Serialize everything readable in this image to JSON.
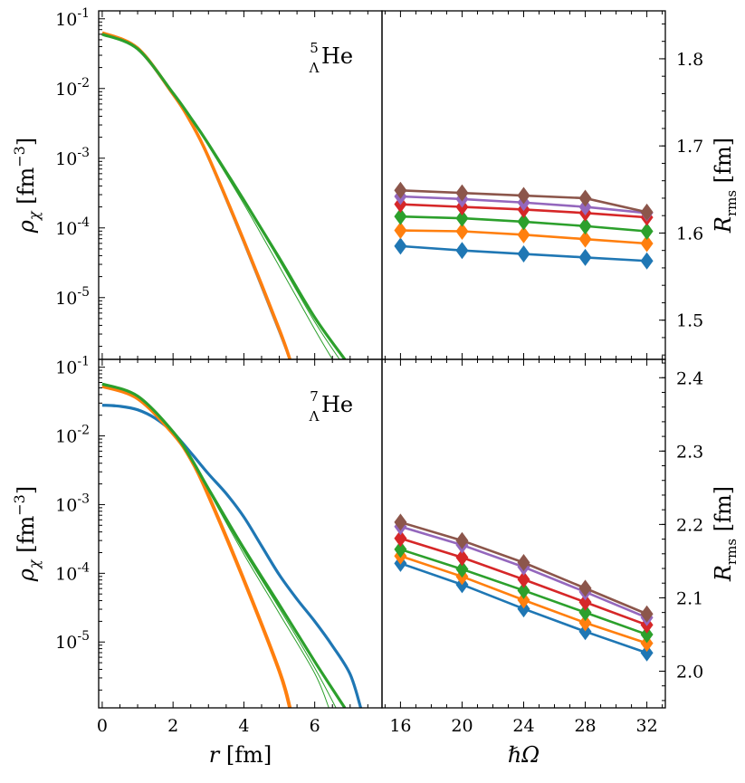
{
  "colors": {
    "blue": "#1f77b4",
    "orange": "#ff7f0e",
    "green": "#2ca02c",
    "red": "#d62728",
    "purple": "#9467bd",
    "brown": "#8c564b",
    "gray": "#7f7f7f"
  },
  "chart_data": [
    {
      "id": "top-left",
      "type": "line",
      "label_super": "5",
      "label_sub": "Λ",
      "label_element": "He",
      "ylabel": "ρ_χ [fm^-3]",
      "yscale": "log",
      "xlim": [
        -0.1,
        7.9
      ],
      "ylim": [
        1.3e-06,
        0.13
      ],
      "ytick_exponents": [
        "-1",
        "-2",
        "-3",
        "-4",
        "-5"
      ],
      "ytick_values": [
        0.1,
        0.01,
        0.001,
        0.0001,
        1e-05
      ],
      "series": [
        {
          "name": "gray",
          "color": "gray",
          "width": 3,
          "x": [
            0,
            1,
            2,
            2.5,
            3,
            4,
            5,
            5.3
          ],
          "y": [
            0.061,
            0.037,
            0.0082,
            0.0033,
            0.00102,
            6.25e-05,
            3.3e-06,
            1.3e-06
          ]
        },
        {
          "name": "orange",
          "color": "orange",
          "width": 3.5,
          "x": [
            0,
            1,
            2,
            2.5,
            3,
            4,
            5,
            5.3
          ],
          "y": [
            0.063,
            0.038,
            0.0083,
            0.0033,
            0.00104,
            6.55e-05,
            3.5e-06,
            1.3e-06
          ]
        },
        {
          "name": "green-thin-1",
          "color": "green",
          "width": 1,
          "x": [
            0,
            1,
            2,
            2.5,
            3,
            4,
            5,
            6,
            6.5
          ],
          "y": [
            0.06,
            0.037,
            0.0086,
            0.0038,
            0.0015,
            0.00022,
            2.8e-05,
            3.5e-06,
            1.3e-06
          ]
        },
        {
          "name": "green-thin-2",
          "color": "green",
          "width": 1,
          "x": [
            0,
            1,
            2,
            2.5,
            3,
            4,
            5,
            6,
            6.7
          ],
          "y": [
            0.06,
            0.037,
            0.0086,
            0.0038,
            0.00155,
            0.00024,
            3.4e-05,
            4.5e-06,
            1.3e-06
          ]
        },
        {
          "name": "green-thick",
          "color": "green",
          "width": 3.2,
          "x": [
            0,
            1,
            2,
            2.5,
            3,
            4,
            5,
            6,
            6.85
          ],
          "y": [
            0.06,
            0.037,
            0.0086,
            0.0038,
            0.0016,
            0.00025,
            3.7e-05,
            5.2e-06,
            1.3e-06
          ]
        }
      ]
    },
    {
      "id": "top-right",
      "type": "line",
      "ylabel": "R_rms [fm]",
      "x": [
        16,
        20,
        24,
        28,
        32
      ],
      "xlim": [
        14.8,
        33.2
      ],
      "ylim": [
        1.455,
        1.855
      ],
      "ytick_labels": [
        "1.5",
        "1.6",
        "1.7",
        "1.8"
      ],
      "ytick_values": [
        1.5,
        1.6,
        1.7,
        1.8
      ],
      "series": [
        {
          "name": "blue",
          "color": "blue",
          "values": [
            1.585,
            1.58,
            1.576,
            1.572,
            1.568
          ]
        },
        {
          "name": "orange",
          "color": "orange",
          "values": [
            1.603,
            1.602,
            1.598,
            1.593,
            1.588
          ]
        },
        {
          "name": "green",
          "color": "green",
          "values": [
            1.619,
            1.617,
            1.613,
            1.608,
            1.602
          ]
        },
        {
          "name": "red",
          "color": "red",
          "values": [
            1.633,
            1.63,
            1.627,
            1.623,
            1.618
          ]
        },
        {
          "name": "purple",
          "color": "purple",
          "values": [
            1.642,
            1.639,
            1.635,
            1.63,
            1.623
          ]
        },
        {
          "name": "brown",
          "color": "brown",
          "values": [
            1.649,
            1.646,
            1.643,
            1.64,
            1.624
          ]
        }
      ]
    },
    {
      "id": "bottom-left",
      "type": "line",
      "label_super": "7",
      "label_sub": "Λ",
      "label_element": "He",
      "xlabel": "r [fm]",
      "ylabel": "ρ_χ [fm^-3]",
      "yscale": "log",
      "xlim": [
        -0.1,
        7.9
      ],
      "xtick_labels": [
        "0",
        "2",
        "4",
        "6"
      ],
      "xtick_values": [
        0,
        2,
        4,
        6
      ],
      "ylim": [
        1.1e-06,
        0.13
      ],
      "ytick_exponents": [
        "-1",
        "-2",
        "-3",
        "-4",
        "-5"
      ],
      "ytick_values": [
        0.1,
        0.01,
        0.001,
        0.0001,
        1e-05
      ],
      "series": [
        {
          "name": "blue",
          "color": "blue",
          "width": 3.2,
          "x": [
            0,
            0.5,
            1,
            1.5,
            2,
            2.5,
            3,
            3.5,
            4,
            4.5,
            5,
            5.5,
            6,
            6.5,
            7,
            7.3
          ],
          "y": [
            0.028,
            0.027,
            0.024,
            0.018,
            0.0112,
            0.0057,
            0.0028,
            0.00145,
            0.00066,
            0.00025,
            9.5e-05,
            4.2e-05,
            2e-05,
            8.8e-06,
            3.4e-06,
            1.1e-06
          ]
        },
        {
          "name": "orange",
          "color": "orange",
          "width": 4,
          "x": [
            0,
            1,
            2,
            2.5,
            3,
            4,
            5,
            5.3
          ],
          "y": [
            0.053,
            0.035,
            0.0108,
            0.0046,
            0.00135,
            8e-05,
            3.8e-06,
            1.1e-06
          ]
        },
        {
          "name": "green-thin-1",
          "color": "green",
          "width": 1,
          "x": [
            0,
            1,
            2,
            2.5,
            3,
            4,
            5,
            6,
            6.4
          ],
          "y": [
            0.057,
            0.038,
            0.0115,
            0.0048,
            0.0016,
            0.00019,
            2.6e-05,
            3.5e-06,
            1.1e-06
          ]
        },
        {
          "name": "green-thin-2",
          "color": "green",
          "width": 1,
          "x": [
            0,
            1,
            2,
            2.5,
            3,
            4,
            5,
            6,
            6.6
          ],
          "y": [
            0.057,
            0.038,
            0.0115,
            0.0048,
            0.0016,
            0.00021,
            3.1e-05,
            4.2e-06,
            1.1e-06
          ]
        },
        {
          "name": "green-thick",
          "color": "green",
          "width": 3.2,
          "x": [
            0,
            1,
            2,
            2.5,
            3,
            4,
            5,
            6,
            6.85
          ],
          "y": [
            0.057,
            0.038,
            0.0115,
            0.0048,
            0.0017,
            0.00023,
            3.5e-05,
            5.2e-06,
            1.1e-06
          ]
        }
      ]
    },
    {
      "id": "bottom-right",
      "type": "line",
      "xlabel": "ℏΩ",
      "ylabel": "R_rms [fm]",
      "x": [
        16,
        20,
        24,
        28,
        32
      ],
      "xlim": [
        14.8,
        33.2
      ],
      "xtick_labels": [
        "16",
        "20",
        "24",
        "28",
        "32"
      ],
      "xtick_values": [
        16,
        20,
        24,
        28,
        32
      ],
      "ylim": [
        1.95,
        2.425
      ],
      "ytick_labels": [
        "2.0",
        "2.1",
        "2.2",
        "2.3",
        "2.4"
      ],
      "ytick_values": [
        2.0,
        2.1,
        2.2,
        2.3,
        2.4
      ],
      "series": [
        {
          "name": "blue",
          "color": "blue",
          "values": [
            2.147,
            2.118,
            2.085,
            2.054,
            2.025
          ]
        },
        {
          "name": "orange",
          "color": "orange",
          "values": [
            2.157,
            2.129,
            2.097,
            2.066,
            2.038
          ]
        },
        {
          "name": "green",
          "color": "green",
          "values": [
            2.166,
            2.139,
            2.11,
            2.08,
            2.05
          ]
        },
        {
          "name": "red",
          "color": "red",
          "values": [
            2.181,
            2.155,
            2.125,
            2.094,
            2.063
          ]
        },
        {
          "name": "purple",
          "color": "purple",
          "values": [
            2.197,
            2.172,
            2.142,
            2.108,
            2.073
          ]
        },
        {
          "name": "brown",
          "color": "brown",
          "values": [
            2.203,
            2.178,
            2.148,
            2.113,
            2.078
          ]
        }
      ]
    }
  ]
}
